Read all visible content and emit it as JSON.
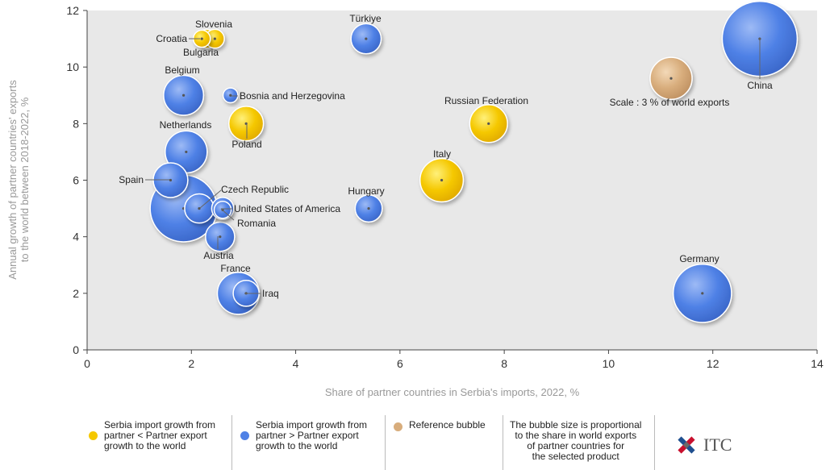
{
  "chart_data": {
    "type": "scatter",
    "xlabel": "Share of partner countries in Serbia's imports, 2022, %",
    "ylabel_lines": [
      "Annual growth of partner countries' exports",
      "to the world between 2018-2022, %"
    ],
    "xlim": [
      0,
      14
    ],
    "ylim": [
      0,
      12
    ],
    "xticks": [
      0,
      2,
      4,
      6,
      8,
      10,
      12,
      14
    ],
    "yticks": [
      0,
      2,
      4,
      6,
      8,
      10,
      12
    ],
    "grid": false,
    "legend_position": "bottom",
    "colors": {
      "yellow": "#f5c800",
      "blue": "#4f81e6",
      "reference": "#d8ad7c"
    },
    "points": [
      {
        "name": "China",
        "x": 12.9,
        "y": 11.0,
        "size": 100,
        "group": "blue"
      },
      {
        "name": "Germany",
        "x": 11.8,
        "y": 2.0,
        "size": 58,
        "group": "blue"
      },
      {
        "name": "Italy",
        "x": 6.8,
        "y": 6.0,
        "size": 30,
        "group": "yellow"
      },
      {
        "name": "Russian Federation",
        "x": 7.7,
        "y": 8.0,
        "size": 22,
        "group": "yellow"
      },
      {
        "name": "Türkiye",
        "x": 5.35,
        "y": 11.0,
        "size": 13,
        "group": "blue"
      },
      {
        "name": "Hungary",
        "x": 5.4,
        "y": 5.0,
        "size": 10,
        "group": "blue"
      },
      {
        "name": "Croatia",
        "x": 2.2,
        "y": 11.0,
        "size": 3,
        "group": "yellow"
      },
      {
        "name": "Slovenia",
        "x": 2.3,
        "y": 11.0,
        "size": 4,
        "group": "yellow"
      },
      {
        "name": "Bulgaria",
        "x": 2.45,
        "y": 11.0,
        "size": 4,
        "group": "yellow"
      },
      {
        "name": "Belgium",
        "x": 1.85,
        "y": 9.0,
        "size": 25,
        "group": "blue"
      },
      {
        "name": "Bosnia and Herzegovina",
        "x": 2.75,
        "y": 9.0,
        "size": 2,
        "group": "blue"
      },
      {
        "name": "Netherlands",
        "x": 1.9,
        "y": 7.0,
        "size": 28,
        "group": "blue"
      },
      {
        "name": "Poland",
        "x": 3.05,
        "y": 8.0,
        "size": 18,
        "group": "yellow"
      },
      {
        "name": "Spain",
        "x": 1.6,
        "y": 6.0,
        "size": 18,
        "group": "blue"
      },
      {
        "name": "France",
        "x": 1.85,
        "y": 5.0,
        "size": 78,
        "group": "blue"
      },
      {
        "name": "Czech Republic",
        "x": 2.15,
        "y": 5.0,
        "size": 12,
        "group": "blue"
      },
      {
        "name": "United States of America",
        "x": 2.6,
        "y": 5.0,
        "size": 6,
        "group": "blue"
      },
      {
        "name": "Romania",
        "x": 2.6,
        "y": 4.95,
        "size": 3,
        "group": "blue"
      },
      {
        "name": "Austria",
        "x": 2.55,
        "y": 4.0,
        "size": 12,
        "group": "blue"
      },
      {
        "name": "Iraq",
        "x": 2.9,
        "y": 2.0,
        "size": 28,
        "group": "blue"
      },
      {
        "name": "Iraq",
        "x": 3.05,
        "y": 2.0,
        "size": 9,
        "group": "blue"
      }
    ],
    "reference_bubble": {
      "label": "Scale : 3 % of world exports",
      "x": 11.2,
      "y": 9.6,
      "size": 28
    },
    "legend": [
      {
        "group": "yellow",
        "text": "Serbia import growth from\npartner < Partner export\ngrowth to the world"
      },
      {
        "group": "blue",
        "text": "Serbia import growth from\npartner > Partner export\ngrowth to the world"
      },
      {
        "group": "reference",
        "text": "Reference bubble"
      }
    ],
    "legend_note": "The bubble size is proportional\nto the share in world exports\nof partner countries for\nthe selected product",
    "logo_text": "ITC"
  }
}
